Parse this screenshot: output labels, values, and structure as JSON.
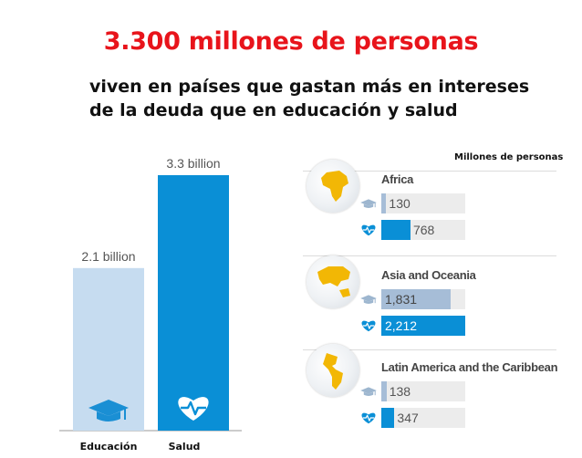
{
  "header": {
    "title": "3.300 millones de personas",
    "subtitle_line1": "viven en países que gastan más en intereses",
    "subtitle_line2": "de la deuda que en educación y salud"
  },
  "colors": {
    "education": "#c6dcf0",
    "health": "#0a8fd6",
    "education_small": "#a6bdd7",
    "health_small": "#0a8fd6",
    "title": "#e8141b"
  },
  "chart_data": [
    {
      "type": "bar",
      "categories": [
        "Educación",
        "Salud"
      ],
      "values": [
        2.1,
        3.3
      ],
      "data_labels": [
        "2.1 billion",
        "3.3 billion"
      ],
      "icons": [
        "graduation-cap-icon",
        "heart-pulse-icon"
      ],
      "ylim": [
        0,
        3.3
      ]
    },
    {
      "type": "bar",
      "units_label": "Millones de personas",
      "series_icons": [
        "graduation-cap-icon",
        "heart-pulse-icon"
      ],
      "max": 2212,
      "regions": [
        {
          "name": "Africa",
          "education": 130,
          "health": 768,
          "education_label": "130",
          "health_label": "768"
        },
        {
          "name": "Asia and Oceania",
          "education": 1831,
          "health": 2212,
          "education_label": "1,831",
          "health_label": "2,212"
        },
        {
          "name": "Latin America and the Caribbean",
          "education": 138,
          "health": 347,
          "education_label": "138",
          "health_label": "347"
        }
      ]
    }
  ]
}
